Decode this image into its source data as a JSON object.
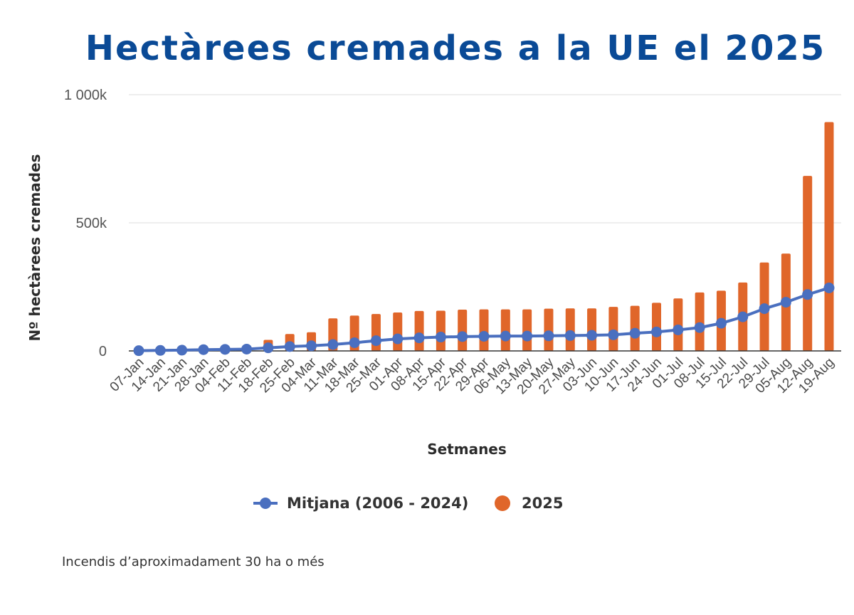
{
  "title": "Hectàrees cremades a la UE el 2025",
  "footnote": "Incendis d’aproximadament 30 ha o més",
  "colors": {
    "title": "#0a4a96",
    "line": "#4a6fbf",
    "bar": "#e0662a",
    "grid": "#e3e3e3",
    "axis": "#333333"
  },
  "chart_data": {
    "type": "bar",
    "title": "Hectàrees cremades a la UE el 2025",
    "xlabel": "Setmanes",
    "ylabel": "Nº hectàrees cremades",
    "ylim": [
      0,
      1000000
    ],
    "yticks": [
      0,
      500000,
      1000000
    ],
    "ytick_labels": [
      "0",
      "500k",
      "1 000k"
    ],
    "grid": true,
    "legend_position": "bottom-center",
    "categories": [
      "07-Jan",
      "14-Jan",
      "21-Jan",
      "28-Jan",
      "04-Feb",
      "11-Feb",
      "18-Feb",
      "25-Feb",
      "04-Mar",
      "11-Mar",
      "18-Mar",
      "25-Mar",
      "01-Apr",
      "08-Apr",
      "15-Apr",
      "22-Apr",
      "29-Apr",
      "06-May",
      "13-May",
      "20-May",
      "27-May",
      "03-Jun",
      "10-Jun",
      "17-Jun",
      "24-Jun",
      "01-Jul",
      "08-Jul",
      "15-Jul",
      "22-Jul",
      "29-Jul",
      "05-Aug",
      "12-Aug",
      "19-Aug"
    ],
    "series": [
      {
        "name": "Mitjana (2006 - 2024)",
        "type": "line",
        "values": [
          1000,
          2000,
          3000,
          5000,
          6000,
          7000,
          12000,
          17000,
          20000,
          25000,
          32000,
          40000,
          47000,
          51000,
          54000,
          56000,
          57000,
          58000,
          58000,
          59000,
          60000,
          61000,
          63000,
          69000,
          74000,
          82000,
          91000,
          108000,
          133000,
          165000,
          190000,
          220000,
          246000
        ]
      },
      {
        "name": "2025",
        "type": "bar",
        "values": [
          2000,
          3000,
          4000,
          6000,
          7000,
          9000,
          43000,
          66000,
          73000,
          127000,
          138000,
          144000,
          150000,
          156000,
          157000,
          161000,
          162000,
          162000,
          162000,
          165000,
          166000,
          166000,
          172000,
          176000,
          188000,
          205000,
          228000,
          235000,
          267000,
          345000,
          380000,
          683000,
          893000
        ]
      }
    ]
  }
}
